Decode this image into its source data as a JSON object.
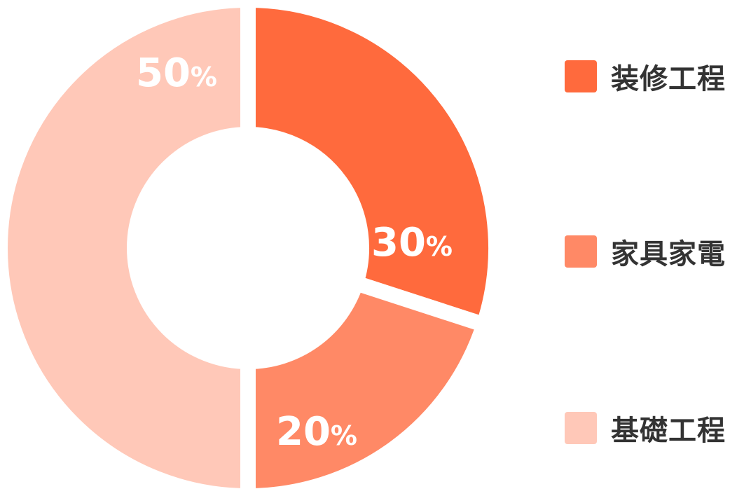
{
  "chart_data": {
    "type": "pie",
    "donut": true,
    "title": "",
    "legend_placement": "right",
    "series": [
      {
        "name": "装修工程",
        "value": 30,
        "label": "30",
        "color": "#FF6A3D"
      },
      {
        "name": "家具家電",
        "value": 20,
        "label": "20",
        "color": "#FF8966"
      },
      {
        "name": "基礎工程",
        "value": 50,
        "label": "50",
        "color": "#FFC8B8"
      }
    ],
    "unit_symbol": "%"
  }
}
